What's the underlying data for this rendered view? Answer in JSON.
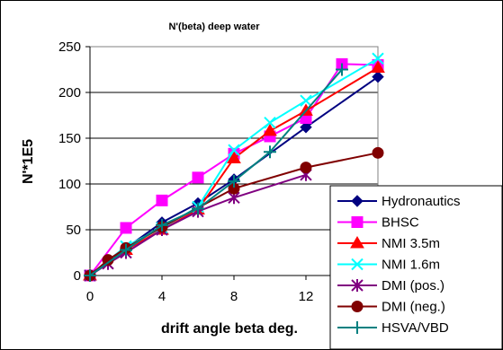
{
  "chart_data": {
    "type": "line",
    "title": "N'(beta)  deep water",
    "xlabel": "drift angle beta deg.",
    "ylabel": "N'*1E5",
    "xlim": [
      0,
      16
    ],
    "ylim": [
      0,
      250
    ],
    "xticks": [
      0,
      4,
      8,
      12
    ],
    "yticks": [
      0,
      50,
      100,
      150,
      200,
      250
    ],
    "grid": "horizontal",
    "legend_position": "bottom-right",
    "series": [
      {
        "name": "Hydronautics",
        "color": "#000080",
        "marker": "diamond",
        "x": [
          0,
          2,
          4,
          6,
          8,
          12,
          16
        ],
        "y": [
          0,
          30,
          58,
          79,
          105,
          162,
          217
        ]
      },
      {
        "name": "BHSC",
        "color": "#FF00FF",
        "marker": "square",
        "x": [
          0,
          2,
          4,
          6,
          8,
          10,
          12,
          14,
          16
        ],
        "y": [
          0,
          52,
          82,
          107,
          133,
          152,
          172,
          231,
          230
        ]
      },
      {
        "name": "NMI 3.5m",
        "color": "#FF0000",
        "marker": "triangle",
        "x": [
          0,
          2,
          4,
          6,
          8,
          10,
          12,
          16
        ],
        "y": [
          0,
          28,
          50,
          72,
          128,
          158,
          180,
          227
        ]
      },
      {
        "name": "NMI 1.6m",
        "color": "#00FFFF",
        "marker": "x",
        "x": [
          0,
          2,
          4,
          6,
          8,
          10,
          12,
          16
        ],
        "y": [
          0,
          32,
          52,
          75,
          137,
          167,
          191,
          237
        ]
      },
      {
        "name": "DMI (pos.)",
        "color": "#800080",
        "marker": "asterisk",
        "x": [
          0,
          1,
          2,
          4,
          6,
          8,
          12
        ],
        "y": [
          0,
          13,
          25,
          50,
          70,
          85,
          110
        ]
      },
      {
        "name": "DMI (neg.)",
        "color": "#800000",
        "marker": "circle",
        "x": [
          0,
          1,
          2,
          4,
          8,
          12,
          16
        ],
        "y": [
          0,
          17,
          30,
          53,
          95,
          118,
          134
        ]
      },
      {
        "name": "HSVA/VBD",
        "color": "#008080",
        "marker": "plus",
        "x": [
          0,
          2,
          4,
          6,
          8,
          10,
          14
        ],
        "y": [
          0,
          28,
          55,
          73,
          103,
          135,
          225
        ]
      }
    ]
  }
}
